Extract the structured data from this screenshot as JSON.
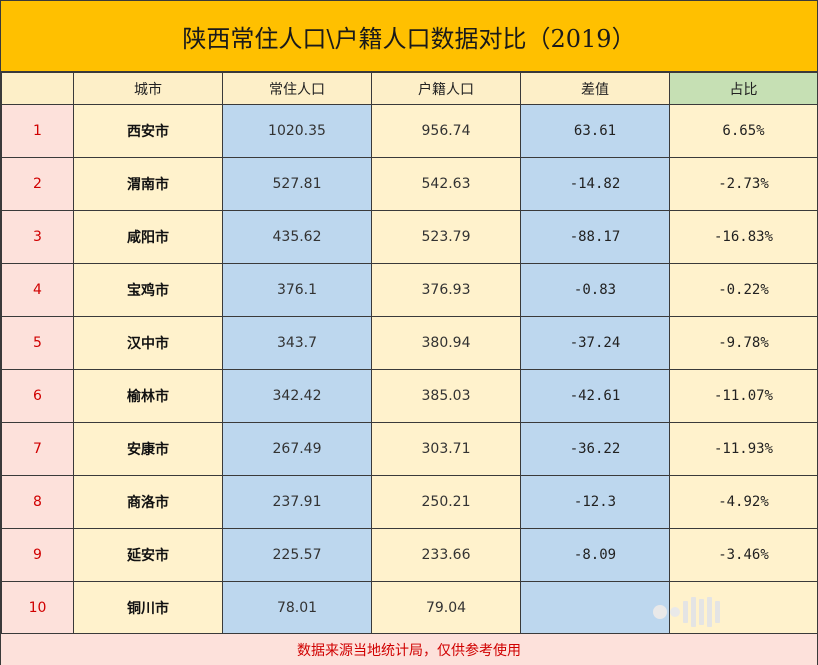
{
  "title": "陕西常住人口\\户籍人口数据对比（2019）",
  "headers": {
    "index": "",
    "city": "城市",
    "resident": "常住人口",
    "registered": "户籍人口",
    "difference": "差值",
    "ratio": "占比"
  },
  "rows": [
    {
      "index": "1",
      "city": "西安市",
      "resident": "1020.35",
      "registered": "956.74",
      "difference": "63.61",
      "ratio": "6.65%"
    },
    {
      "index": "2",
      "city": "渭南市",
      "resident": "527.81",
      "registered": "542.63",
      "difference": "-14.82",
      "ratio": "-2.73%"
    },
    {
      "index": "3",
      "city": "咸阳市",
      "resident": "435.62",
      "registered": "523.79",
      "difference": "-88.17",
      "ratio": "-16.83%"
    },
    {
      "index": "4",
      "city": "宝鸡市",
      "resident": "376.1",
      "registered": "376.93",
      "difference": "-0.83",
      "ratio": "-0.22%"
    },
    {
      "index": "5",
      "city": "汉中市",
      "resident": "343.7",
      "registered": "380.94",
      "difference": "-37.24",
      "ratio": "-9.78%"
    },
    {
      "index": "6",
      "city": "榆林市",
      "resident": "342.42",
      "registered": "385.03",
      "difference": "-42.61",
      "ratio": "-11.07%"
    },
    {
      "index": "7",
      "city": "安康市",
      "resident": "267.49",
      "registered": "303.71",
      "difference": "-36.22",
      "ratio": "-11.93%"
    },
    {
      "index": "8",
      "city": "商洛市",
      "resident": "237.91",
      "registered": "250.21",
      "difference": "-12.3",
      "ratio": "-4.92%"
    },
    {
      "index": "9",
      "city": "延安市",
      "resident": "225.57",
      "registered": "233.66",
      "difference": "-8.09",
      "ratio": "-3.46%"
    },
    {
      "index": "10",
      "city": "铜川市",
      "resident": "78.01",
      "registered": "79.04",
      "difference": "",
      "ratio": ""
    }
  ],
  "footer": "数据来源当地统计局，仅供参考使用",
  "colors": {
    "title_bg": "#ffc000",
    "index_bg": "#fde1db",
    "index_text": "#d00000",
    "cream_bg": "#fff2cc",
    "blue_bg": "#bdd7ee",
    "ratio_header_bg": "#c6e0b4",
    "footer_text": "#d00000"
  }
}
